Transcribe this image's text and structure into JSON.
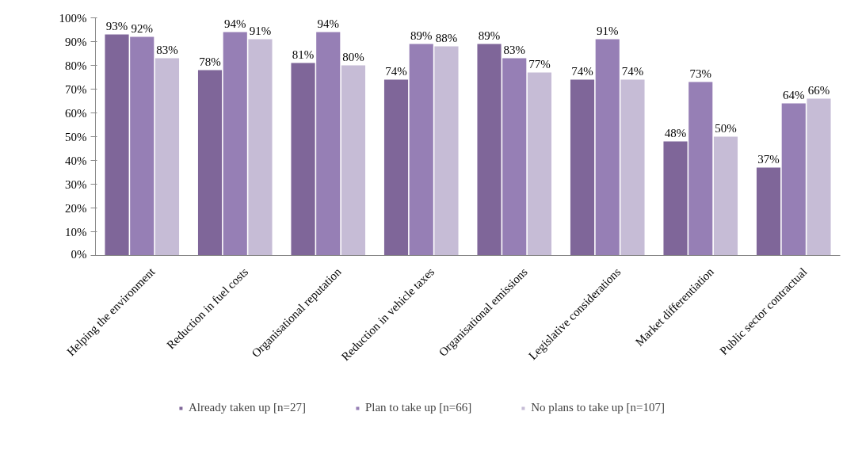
{
  "chart_data": {
    "type": "bar",
    "categories": [
      "Helping the environment",
      "Reduction in fuel costs",
      "Organisational reputation",
      "Reduction in vehicle taxes",
      "Organisational emissions",
      "Legislative considerations",
      "Market differentiation",
      "Public sector contractual"
    ],
    "series": [
      {
        "name": "Already taken up [n=27]",
        "color": "#7f6699",
        "values": [
          93,
          78,
          81,
          74,
          89,
          74,
          48,
          37
        ],
        "value_labels": [
          "93%",
          "78%",
          "81%",
          "74%",
          "89%",
          "74%",
          "48%",
          "37%"
        ]
      },
      {
        "name": "Plan to take up [n=66]",
        "color": "#967fb5",
        "values": [
          92,
          94,
          94,
          89,
          83,
          91,
          73,
          64
        ],
        "value_labels": [
          "92%",
          "94%",
          "94%",
          "89%",
          "83%",
          "91%",
          "73%",
          "64%"
        ]
      },
      {
        "name": "No plans to take up [n=107]",
        "color": "#c6bcd6",
        "values": [
          83,
          91,
          80,
          88,
          77,
          74,
          50,
          66
        ],
        "value_labels": [
          "83%",
          "91%",
          "80%",
          "88%",
          "77%",
          "74%",
          "50%",
          "66%"
        ]
      }
    ],
    "ylim": [
      0,
      100
    ],
    "yticks": [
      {
        "value": 0,
        "label": "0%"
      },
      {
        "value": 10,
        "label": "10%"
      },
      {
        "value": 20,
        "label": "20%"
      },
      {
        "value": 30,
        "label": "30%"
      },
      {
        "value": 40,
        "label": "40%"
      },
      {
        "value": 50,
        "label": "50%"
      },
      {
        "value": 60,
        "label": "60%"
      },
      {
        "value": 70,
        "label": "70%"
      },
      {
        "value": 80,
        "label": "80%"
      },
      {
        "value": 90,
        "label": "90%"
      },
      {
        "value": 100,
        "label": "100%"
      }
    ],
    "grid": false,
    "legend": "bottom"
  }
}
